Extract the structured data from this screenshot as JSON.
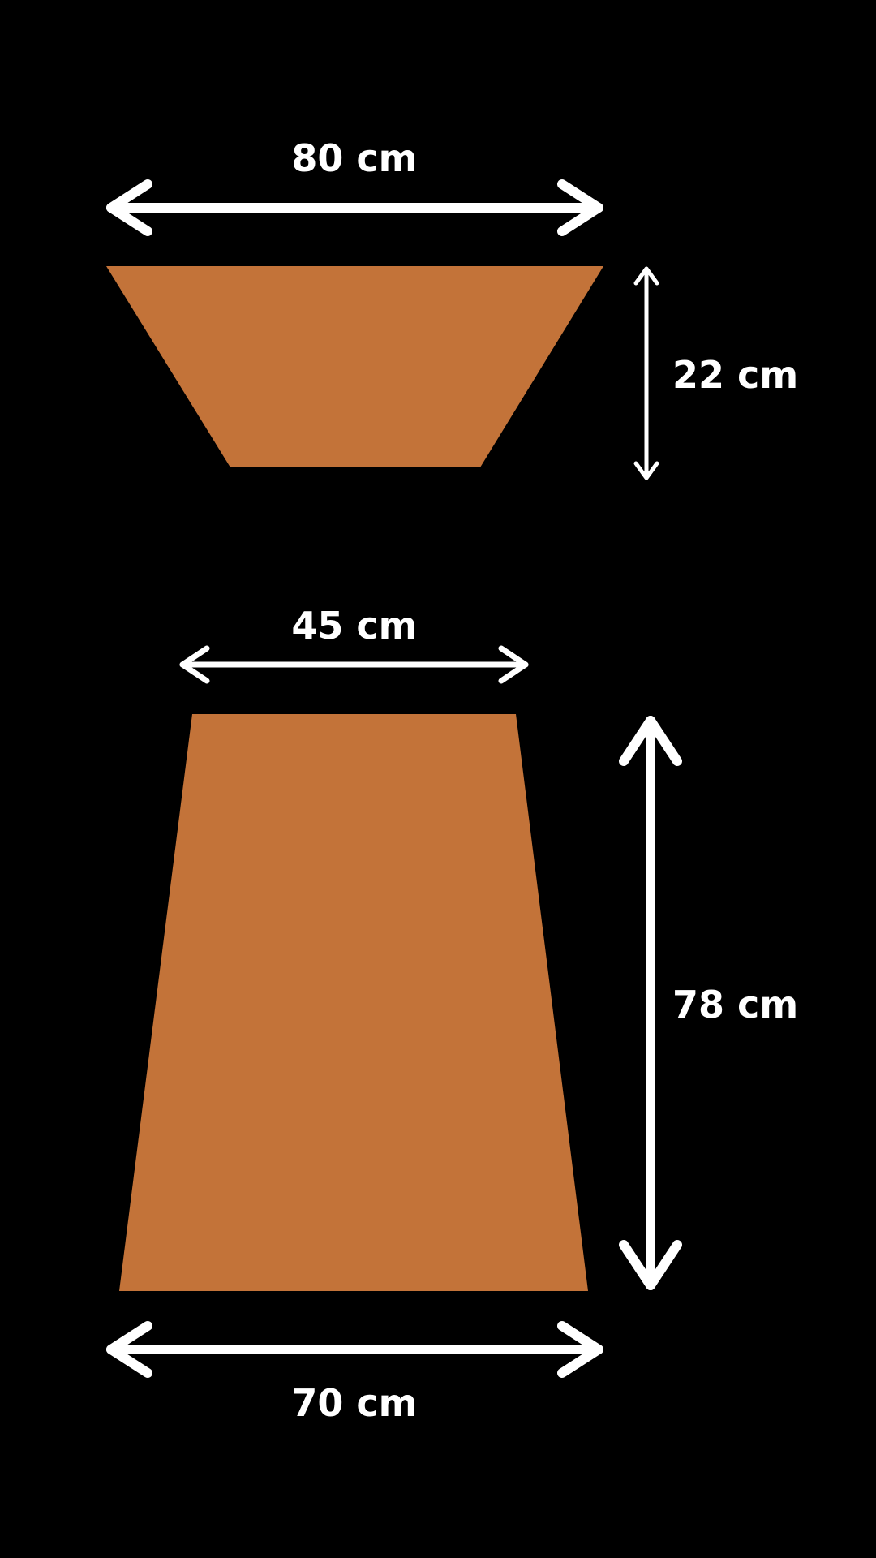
{
  "colors": {
    "background": "#000000",
    "shape_fill": "#c37339",
    "annotation": "#ffffff"
  },
  "top_piece": {
    "shape": "inverted-trapezoid",
    "width_label": "80 cm",
    "height_label": "22 cm"
  },
  "bottom_piece": {
    "shape": "trapezoid",
    "top_width_label": "45 cm",
    "height_label": "78 cm",
    "bottom_width_label": "70 cm"
  }
}
